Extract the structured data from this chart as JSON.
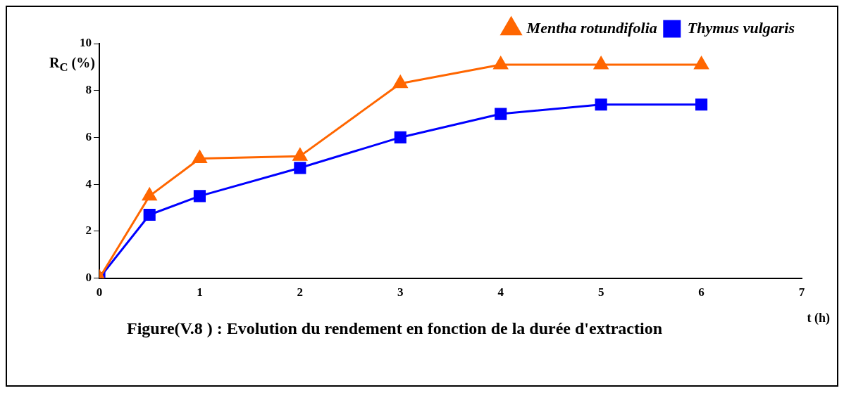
{
  "chart_data": {
    "type": "line",
    "title": "Figure(V.8 ) : Evolution du rendement  en fonction de la durée d'extraction",
    "xlabel": "t (h)",
    "ylabel": "R$_{C}$ (%)",
    "x": [
      0,
      0.5,
      1,
      2,
      3,
      4,
      5,
      6
    ],
    "series": [
      {
        "name": "Mentha rotundifolia",
        "color": "#ff6600",
        "marker": "triangle",
        "values": [
          0,
          3.5,
          5.1,
          5.2,
          8.3,
          9.1,
          9.1,
          9.1
        ]
      },
      {
        "name": "Thymus vulgaris",
        "color": "#0000ff",
        "marker": "square",
        "values": [
          0,
          2.7,
          3.5,
          4.7,
          6.0,
          7.0,
          7.4,
          7.4
        ]
      }
    ],
    "xlim": [
      0,
      7
    ],
    "xticks": [
      0,
      1,
      2,
      3,
      4,
      5,
      6,
      7
    ],
    "ylim": [
      0,
      10
    ],
    "yticks": [
      0,
      2,
      4,
      6,
      8,
      10
    ],
    "grid": false,
    "legend": "top right",
    "line_style": "solid"
  }
}
